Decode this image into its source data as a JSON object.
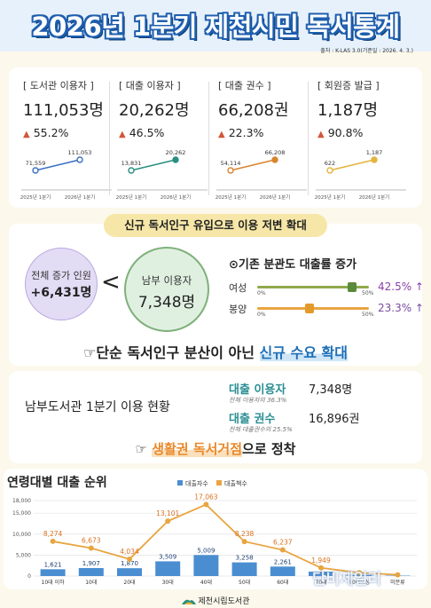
{
  "header": {
    "title": "2026년 1분기 제천시민 독서통계",
    "source": "출처 : K-LAS 3.0(기준일 : 2026. 4. 3.)"
  },
  "colors": {
    "accent": "#1f5fae",
    "up_arrow": "#d2563a",
    "male": "#8fa94a",
    "female_pct": "#8a3fa8",
    "male_pct": "#7a4a9e",
    "orange": "#e8892a",
    "blue_bar": "#4a8ed1"
  },
  "kpis": [
    {
      "label": "[ 도서관 이용자 ]",
      "value": "111,053명",
      "change": "55.2%",
      "prev": "71,559",
      "curr": "111,053",
      "x_prev": "2025년 1분기",
      "x_curr": "2026년 1분기",
      "color": "#3b6fc0",
      "dot": "#ffffff"
    },
    {
      "label": "[ 대출 이용자 ]",
      "value": "20,262명",
      "change": "46.5%",
      "prev": "13,831",
      "curr": "20,262",
      "x_prev": "2025년 1분기",
      "x_curr": "2026년 1분기",
      "color": "#2a8f80",
      "dot": "#2a8f80"
    },
    {
      "label": "[ 대출 권수 ]",
      "value": "66,208권",
      "change": "22.3%",
      "prev": "54,114",
      "curr": "66,208",
      "x_prev": "2025년 1분기",
      "x_curr": "2026년 1분기",
      "color": "#d8842e",
      "dot": "#d8842e"
    },
    {
      "label": "[ 회원증 발급 ]",
      "value": "1,187명",
      "change": "90.8%",
      "prev": "622",
      "curr": "1,187",
      "x_prev": "2025년 1분기",
      "x_curr": "2026년 1분기",
      "color": "#e4b53d",
      "dot": "#e4b53d"
    }
  ],
  "section2": {
    "banner": "신규 독서인구 유입으로 이용 저변 확대",
    "total_label": "전체 증가 인원",
    "total_value": "+6,431명",
    "lt": "<",
    "south_label": "남부 이용자",
    "south_value": "7,348명",
    "sliders_title": "⊙기존 분관도 대출률 증가",
    "rows": [
      {
        "label": "여성",
        "pct": "42.5% ↑",
        "zero": "0%",
        "fifty": "50%",
        "fraction": 0.85
      },
      {
        "label": "봉양",
        "pct": "23.3% ↑",
        "zero": "0%",
        "fifty": "50%",
        "fraction": 0.466
      }
    ],
    "callout_prefix": "☞단순 독서인구 분산이 아닌 ",
    "callout_highlight": "신규 수요 확대"
  },
  "section3": {
    "left": "남부도서관 1분기 이용 현황",
    "loan_users_label": "대출 이용자",
    "loan_users_sub": "전체 이용자의 36.3%",
    "loan_users_value": "7,348명",
    "loan_count_label": "대출 권수",
    "loan_count_sub": "전체 대출권수의 25.5%",
    "loan_count_value": "16,896권",
    "callout_hand": "☞ ",
    "callout_highlight": "생활권 독서거점",
    "callout_suffix": "으로 정착"
  },
  "chart_title": "연령대별 대출 순위",
  "chart_data": {
    "type": "bar",
    "categories": [
      "10대 이하",
      "10대",
      "20대",
      "30대",
      "40대",
      "50대",
      "60대",
      "70대",
      "80대이상",
      "미분류"
    ],
    "series": [
      {
        "name": "대출자수",
        "values": [
          1621,
          1907,
          1870,
          3509,
          5009,
          3258,
          2261,
          1050,
          300,
          100
        ],
        "labels": [
          "1,621",
          "1,907",
          "1,870",
          "3,509",
          "5,009",
          "3,258",
          "2,261",
          "",
          "",
          ""
        ]
      },
      {
        "name": "대출책수",
        "values": [
          8274,
          6673,
          4034,
          13101,
          17063,
          8238,
          6237,
          1949,
          800,
          300
        ],
        "labels": [
          "8,274",
          "6,673",
          "4,034",
          "13,101",
          "17,063",
          "8,238",
          "6,237",
          "1,949",
          "",
          ""
        ]
      }
    ],
    "yticks": [
      "0",
      "5,000",
      "10,000",
      "15,000",
      "18,000"
    ],
    "ylim": [
      0,
      18000
    ],
    "legend": "top-center"
  },
  "footer": "제천시립도서관",
  "watermark": "단비제일리"
}
